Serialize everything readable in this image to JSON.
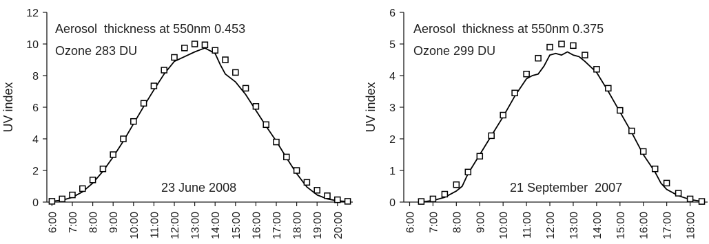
{
  "chart_data": [
    {
      "type": "line",
      "title": "",
      "xlabel": "",
      "ylabel": "UV index",
      "ylim": [
        0,
        12
      ],
      "yticks": [
        0,
        2,
        4,
        6,
        8,
        10,
        12
      ],
      "xlim": [
        5.75,
        20.75
      ],
      "xticks": [
        "6:00",
        "7:00",
        "8:00",
        "9:00",
        "10:00",
        "11:00",
        "12:00",
        "13:00",
        "14:00",
        "15:00",
        "16:00",
        "17:00",
        "18:00",
        "19:00",
        "20:00"
      ],
      "grid": false,
      "annotations": [
        "Aerosol  thickness at 550nm 0.453",
        "Ozone 283 DU",
        "23 June 2008"
      ],
      "series": [
        {
          "name": "",
          "style": "line",
          "x": [
            6.0,
            6.5,
            7.0,
            7.5,
            8.0,
            8.5,
            9.0,
            9.5,
            10.0,
            10.5,
            11.0,
            11.5,
            12.0,
            12.5,
            13.0,
            13.5,
            14.0,
            14.25,
            14.5,
            15.0,
            15.5,
            16.0,
            16.5,
            17.0,
            17.5,
            18.0,
            18.5,
            19.0,
            19.5,
            20.0,
            20.5
          ],
          "y": [
            0.05,
            0.12,
            0.3,
            0.65,
            1.2,
            1.95,
            2.85,
            3.85,
            4.95,
            6.05,
            7.1,
            8.1,
            8.9,
            9.2,
            9.5,
            9.75,
            9.4,
            8.7,
            8.1,
            7.6,
            6.8,
            5.8,
            4.8,
            3.85,
            2.8,
            1.8,
            0.95,
            0.45,
            0.2,
            0.08,
            0.03
          ]
        },
        {
          "name": "",
          "style": "markers",
          "x": [
            6.0,
            6.5,
            7.0,
            7.5,
            8.0,
            8.5,
            9.0,
            9.5,
            10.0,
            10.5,
            11.0,
            11.5,
            12.0,
            12.5,
            13.0,
            13.5,
            14.0,
            14.5,
            15.0,
            15.5,
            16.0,
            16.5,
            17.0,
            17.5,
            18.0,
            18.5,
            19.0,
            19.5,
            20.0,
            20.5
          ],
          "y": [
            0.05,
            0.2,
            0.45,
            0.85,
            1.4,
            2.1,
            3.0,
            4.0,
            5.1,
            6.25,
            7.35,
            8.35,
            9.15,
            9.75,
            10.0,
            9.95,
            9.6,
            9.0,
            8.2,
            7.2,
            6.05,
            4.9,
            3.8,
            2.85,
            2.0,
            1.25,
            0.75,
            0.4,
            0.15,
            0.05
          ]
        }
      ]
    },
    {
      "type": "line",
      "title": "",
      "xlabel": "",
      "ylabel": "UV index",
      "ylim": [
        0,
        6
      ],
      "yticks": [
        0,
        1,
        2,
        3,
        4,
        5,
        6
      ],
      "xlim": [
        5.75,
        18.75
      ],
      "xticks": [
        "6:00",
        "7:00",
        "8:00",
        "9:00",
        "10:00",
        "11:00",
        "12:00",
        "13:00",
        "14:00",
        "15:00",
        "16:00",
        "17:00",
        "18:00"
      ],
      "grid": false,
      "annotations": [
        "Aerosol  thickness at 550nm 0.375",
        "Ozone 299 DU",
        "21 September  2007"
      ],
      "series": [
        {
          "name": "",
          "style": "line",
          "x": [
            6.5,
            7.0,
            7.5,
            8.0,
            8.25,
            8.5,
            9.0,
            9.5,
            10.0,
            10.5,
            11.0,
            11.25,
            11.5,
            11.75,
            12.0,
            12.25,
            12.5,
            12.75,
            13.0,
            13.25,
            13.5,
            14.0,
            14.5,
            15.0,
            15.5,
            16.0,
            16.5,
            16.75,
            17.0,
            17.5,
            18.0,
            18.5
          ],
          "y": [
            0.0,
            0.05,
            0.15,
            0.35,
            0.5,
            0.9,
            1.5,
            2.1,
            2.7,
            3.35,
            3.9,
            4.0,
            4.05,
            4.3,
            4.65,
            4.7,
            4.65,
            4.75,
            4.65,
            4.6,
            4.45,
            4.1,
            3.5,
            2.85,
            2.2,
            1.5,
            0.95,
            0.6,
            0.4,
            0.2,
            0.08,
            0.02
          ]
        },
        {
          "name": "",
          "style": "markers",
          "x": [
            6.5,
            7.0,
            7.5,
            8.0,
            8.5,
            9.0,
            9.5,
            10.0,
            10.5,
            11.0,
            11.5,
            12.0,
            12.5,
            13.0,
            13.5,
            14.0,
            14.5,
            15.0,
            15.5,
            16.0,
            16.5,
            17.0,
            17.5,
            18.0,
            18.5
          ],
          "y": [
            0.02,
            0.1,
            0.25,
            0.55,
            0.95,
            1.45,
            2.1,
            2.75,
            3.45,
            4.05,
            4.55,
            4.9,
            5.0,
            4.95,
            4.65,
            4.2,
            3.6,
            2.9,
            2.25,
            1.6,
            1.05,
            0.6,
            0.28,
            0.1,
            0.02
          ]
        }
      ]
    }
  ],
  "colors": {
    "line": "#000000",
    "marker_stroke": "#000000",
    "marker_fill": "#ffffff",
    "axis": "#1a1a1a",
    "text": "#222222"
  }
}
